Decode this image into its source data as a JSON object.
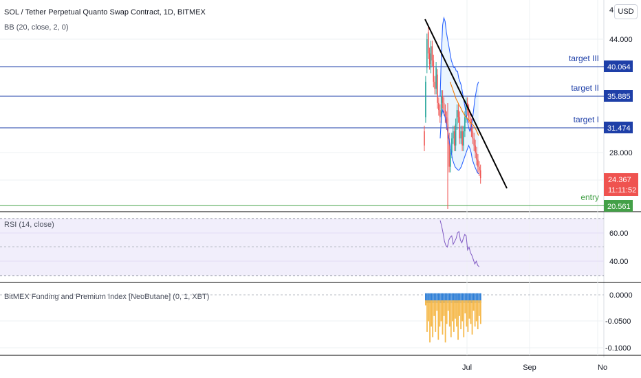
{
  "header": {
    "symbol_title": "SOL / Tether Perpetual Quanto Swap Contract, 1D, BITMEX",
    "bb_label": "BB (20, close, 2, 0)",
    "currency_button": "USD"
  },
  "colors": {
    "level_line": "#1e3fa8",
    "entry_line": "#43a047",
    "trend_line": "#000000",
    "bb_band": "#2962ff",
    "bb_basis": "#f57c00",
    "bb_fill": "#e3f2fd",
    "up_candle": "#26a69a",
    "down_candle": "#ef5350",
    "rsi_line": "#7e57c2",
    "rsi_band": "#f1eefb",
    "funding_blue": "#2f7fd6",
    "funding_orange": "#f6b94b",
    "price_label_current": "#ef5350"
  },
  "chart_data": [
    {
      "type": "line",
      "title": "SOL / Tether Perpetual Quanto Swap Contract, 1D, BITMEX",
      "y_ticks": [
        "44.000",
        "28.000"
      ],
      "y_top_partial_label": "4",
      "x_ticks": [
        "Jul",
        "Sep",
        "No"
      ],
      "levels": [
        {
          "label": "target III",
          "value": 40.064,
          "value_text": "40.064"
        },
        {
          "label": "target II",
          "value": 35.885,
          "value_text": "35.885"
        },
        {
          "label": "target I",
          "value": 31.474,
          "value_text": "31.474"
        },
        {
          "label": "entry",
          "value": 20.561,
          "value_text": "20.561"
        }
      ],
      "current_price": {
        "value": 24.367,
        "value_text": "24.367",
        "countdown": "11:11:52"
      },
      "candles_close": [
        29,
        38,
        44,
        42,
        40.5,
        43,
        41,
        38,
        37,
        40,
        35,
        34,
        33,
        36,
        35,
        34,
        33,
        32,
        30,
        26,
        28,
        30,
        31,
        29,
        32,
        34,
        33,
        30,
        31,
        29,
        31,
        33,
        35,
        34,
        33,
        32,
        31,
        30,
        29,
        28,
        27,
        26,
        25.5,
        24.4
      ],
      "candles_open": [
        31,
        33,
        40,
        45,
        42,
        40,
        43,
        41,
        38,
        37,
        39,
        35,
        34,
        33,
        36,
        35,
        34,
        33,
        32,
        30,
        26,
        28,
        30,
        31,
        29,
        32,
        34,
        33,
        30,
        31,
        29,
        31,
        33,
        35,
        34,
        33,
        32,
        31,
        30,
        29,
        28,
        27,
        26,
        25.5
      ],
      "bb_upper": [
        36,
        42,
        46,
        47,
        46.5,
        45,
        44,
        43,
        42,
        41,
        40.5,
        40,
        40,
        39.5,
        39.5,
        38.5,
        38,
        37.5,
        36.5,
        35.5,
        34.5,
        33.5,
        32.5,
        31.5,
        31,
        31.5,
        32.5,
        34,
        35.5,
        36.5,
        37.5,
        38
      ],
      "bb_middle": [
        34,
        38,
        40,
        40.5,
        40,
        39.5,
        39,
        38.5,
        38,
        37.5,
        37,
        36.5,
        36,
        35.5,
        35.2,
        34.8,
        34.5,
        34.2,
        33.8,
        33.5,
        33.2,
        33,
        32.8,
        32.6,
        32.4,
        32.2,
        32,
        31.8,
        31.5,
        31.2,
        30.8,
        30.4
      ],
      "bb_lower": [
        30,
        33,
        34,
        33.5,
        33,
        32,
        31,
        30,
        29,
        28,
        27,
        26.5,
        26,
        25.8,
        25.6,
        25.5,
        25.7,
        26,
        26.5,
        27,
        27.5,
        28,
        28.5,
        29,
        28.6,
        28,
        27,
        26.5,
        26,
        25.6,
        25.2,
        25
      ],
      "trendline": {
        "start": [
          0,
          46.5
        ],
        "end": [
          52,
          22.7
        ]
      }
    },
    {
      "type": "line",
      "title": "RSI (14, close)",
      "y_ticks": [
        "60.00",
        "40.00"
      ],
      "bands": [
        30,
        70
      ],
      "values": [
        69,
        65,
        60,
        54,
        51,
        50,
        55,
        57,
        58,
        52,
        54,
        56,
        60,
        61,
        55,
        53,
        56,
        59,
        58,
        48,
        50,
        46,
        44,
        41,
        38,
        40,
        37,
        36
      ]
    },
    {
      "type": "bar",
      "title": "BitMEX Funding and Premium Index [NeoButane] (0, 1, XBT)",
      "y_ticks": [
        "0.0000",
        "-0.0500",
        "-0.1000"
      ],
      "series": [
        {
          "name": "Funding",
          "values": [
            0.002,
            0.003,
            0.001,
            0.002,
            0.003,
            0.001,
            0.002,
            0.001,
            0.003,
            0.002,
            0.001,
            0.002,
            0.003,
            0.002,
            0.001,
            0.002,
            0.003,
            0.001,
            0.002,
            0.003,
            0.002,
            0.001,
            0.002,
            0.003,
            0.001,
            0.002,
            0.003,
            0.002,
            0.001,
            0.002,
            0.003,
            0.002,
            0.001,
            0.002,
            0.003,
            0.002,
            0.001,
            0.002,
            0.003,
            0.002
          ]
        },
        {
          "name": "Premium Index",
          "values": [
            -0.02,
            -0.07,
            -0.05,
            -0.09,
            -0.06,
            -0.08,
            -0.04,
            -0.07,
            -0.03,
            -0.085,
            -0.06,
            -0.05,
            -0.075,
            -0.04,
            -0.09,
            -0.055,
            -0.03,
            -0.06,
            -0.08,
            -0.05,
            -0.07,
            -0.045,
            -0.06,
            -0.085,
            -0.04,
            -0.065,
            -0.05,
            -0.08,
            -0.035,
            -0.06,
            -0.07,
            -0.045,
            -0.055,
            -0.075,
            -0.03,
            -0.06,
            -0.05,
            -0.065,
            -0.04,
            -0.055
          ]
        }
      ]
    }
  ]
}
